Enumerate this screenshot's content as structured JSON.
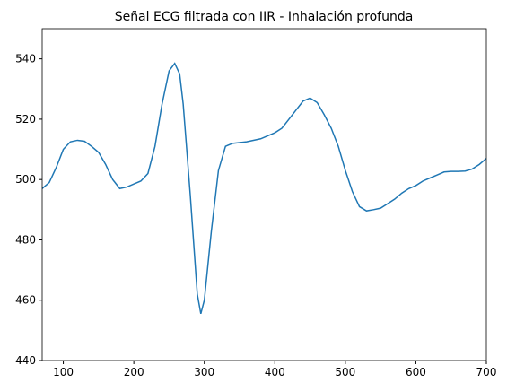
{
  "chart_data": {
    "type": "line",
    "title": "Señal ECG filtrada con IIR - Inhalación profunda",
    "x": [
      70,
      80,
      90,
      100,
      110,
      120,
      130,
      140,
      150,
      160,
      170,
      180,
      190,
      200,
      210,
      220,
      230,
      240,
      250,
      258,
      265,
      270,
      280,
      290,
      295,
      300,
      310,
      320,
      330,
      340,
      360,
      380,
      400,
      410,
      420,
      430,
      440,
      450,
      460,
      470,
      480,
      490,
      500,
      510,
      520,
      530,
      540,
      550,
      560,
      570,
      580,
      590,
      600,
      610,
      620,
      630,
      640,
      650,
      660,
      670,
      680,
      690,
      700
    ],
    "series": [
      {
        "name": "ECG",
        "color": "#1f77b4",
        "values": [
          497,
          499,
          504,
          510,
          512.5,
          513,
          512.7,
          511,
          509,
          505,
          500,
          497,
          497.5,
          498.5,
          499.5,
          502,
          511,
          525,
          536,
          538.5,
          535,
          525,
          495,
          462,
          455.5,
          460,
          483,
          503,
          511,
          512,
          512.5,
          513.5,
          515.5,
          517,
          520,
          523,
          526,
          527,
          525.5,
          521.5,
          517,
          511,
          503,
          496,
          491,
          489.6,
          490,
          490.5,
          492,
          493.5,
          495.5,
          497,
          498,
          499.5,
          500.5,
          501.5,
          502.5,
          502.7,
          502.7,
          502.8,
          503.5,
          505,
          507
        ]
      }
    ],
    "xlim": [
      70,
      700
    ],
    "xticks": [
      100,
      200,
      300,
      400,
      500,
      600,
      700
    ],
    "ylim": [
      440,
      550
    ],
    "yticks": [
      440,
      460,
      480,
      500,
      520,
      540
    ]
  }
}
